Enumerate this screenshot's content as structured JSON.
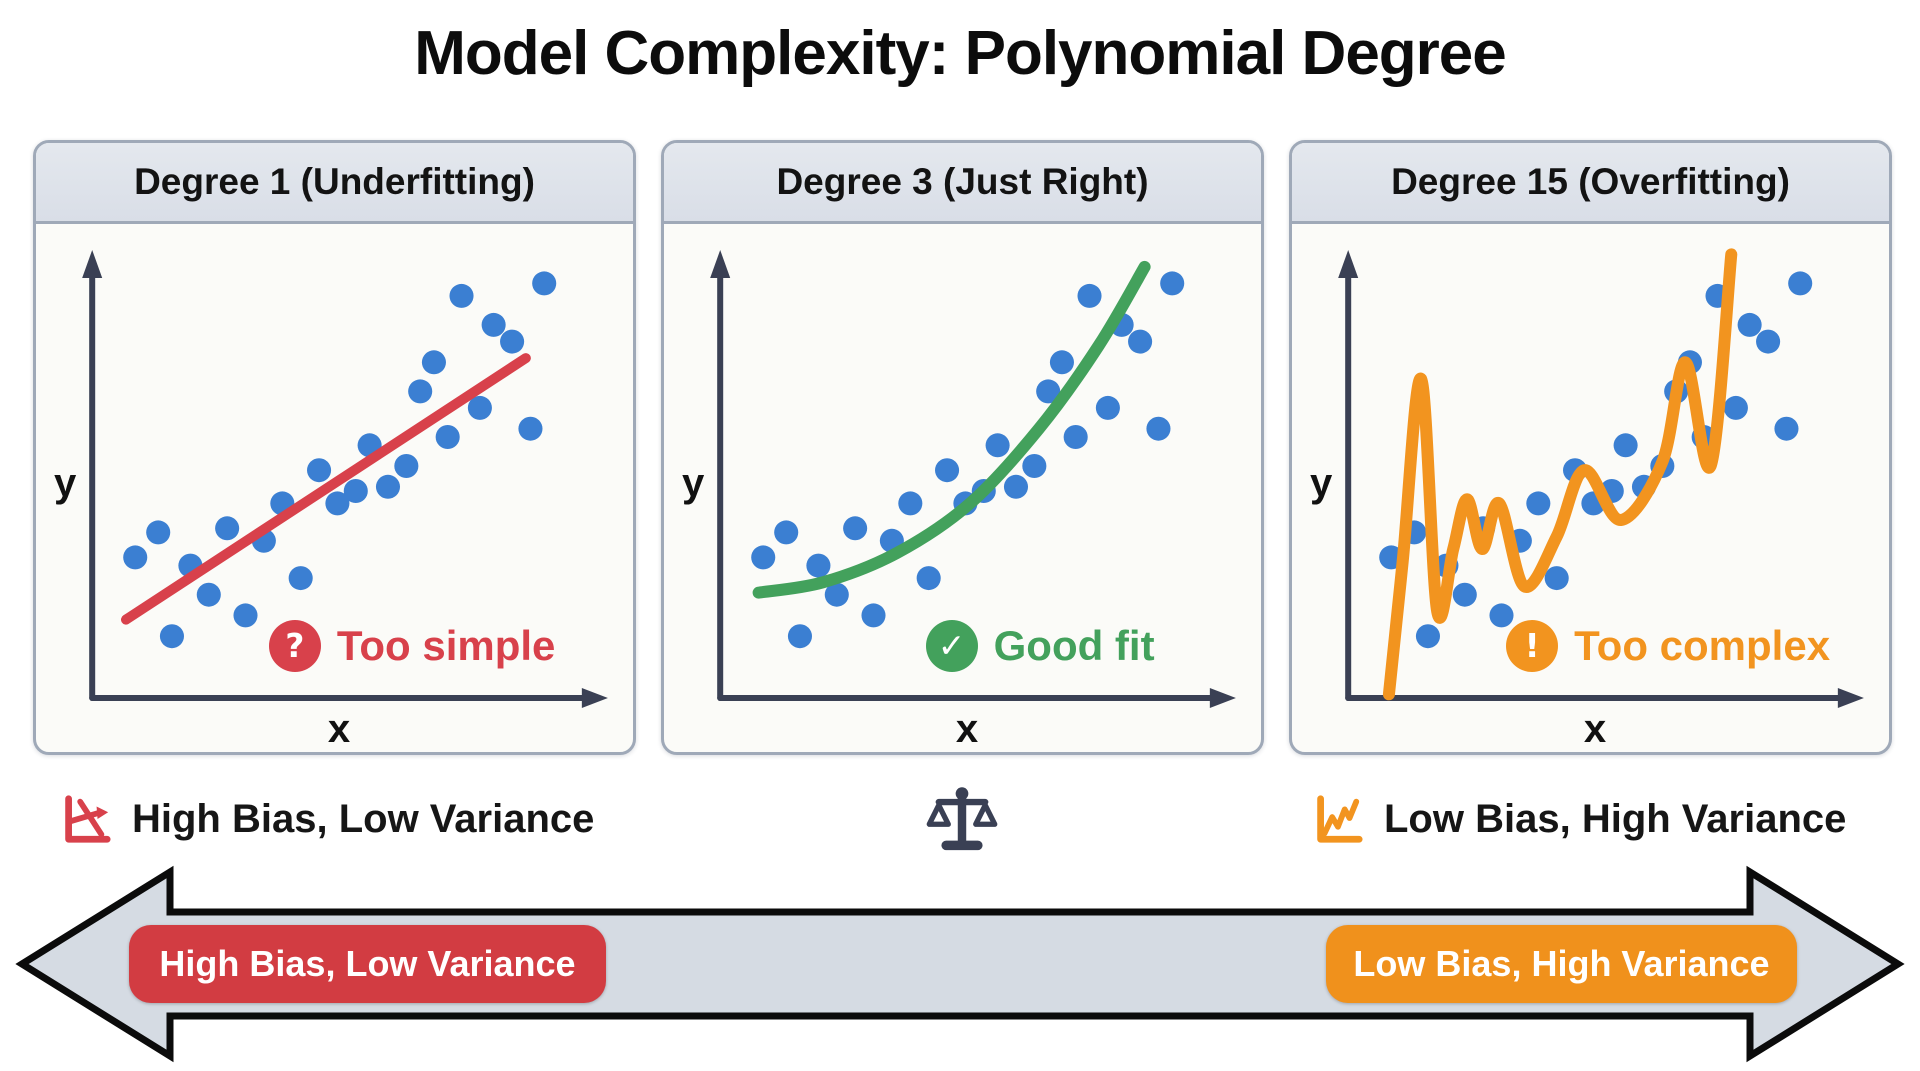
{
  "title": "Model Complexity: Polynomial Degree",
  "colors": {
    "red": "#d8414b",
    "green": "#43a15c",
    "orange": "#f2941f",
    "blue": "#3b7fd2",
    "axis": "#3a4054",
    "panel_border": "#9fa9b8",
    "panel_header_bg": "#d9dee7",
    "panel_body_bg": "#fbfbf8",
    "arrow_fill": "#d5dbe3",
    "arrow_stroke": "#0b0b0b",
    "badge_red": "#d23c42",
    "badge_orange": "#f0911c"
  },
  "panels": [
    {
      "header": "Degree 1 (Underfitting)",
      "status": {
        "icon": "question-circle",
        "glyph": "?",
        "label": "Too simple",
        "color": "#d8414b"
      }
    },
    {
      "header": "Degree 3 (Just Right)",
      "status": {
        "icon": "check-circle",
        "glyph": "✓",
        "label": "Good fit",
        "color": "#43a15c"
      }
    },
    {
      "header": "Degree 15 (Overfitting)",
      "status": {
        "icon": "exclamation-circle",
        "glyph": "!",
        "label": "Too complex",
        "color": "#f2941f"
      }
    }
  ],
  "captions": {
    "left": {
      "icon": "declining-chart-icon",
      "label": "High Bias, Low Variance"
    },
    "center": {
      "icon": "balance-scale-icon"
    },
    "right": {
      "icon": "zigzag-chart-icon",
      "label": "Low Bias, High Variance"
    }
  },
  "spectrum_arrow": {
    "left_badge": {
      "label": "High Bias, Low Variance",
      "color": "#d23c42"
    },
    "right_badge": {
      "label": "Low Bias, High Variance",
      "color": "#f0911c"
    }
  },
  "chart_data": [
    {
      "type": "scatter",
      "panel": "Degree 1 (Underfitting)",
      "xlabel": "x",
      "ylabel": "y",
      "x_range": [
        0,
        1
      ],
      "y_range": [
        0,
        1
      ],
      "grid": false,
      "legend": false,
      "point_color": "#3b7fd2",
      "points": [
        [
          0.05,
          0.31
        ],
        [
          0.1,
          0.37
        ],
        [
          0.13,
          0.12
        ],
        [
          0.17,
          0.29
        ],
        [
          0.21,
          0.22
        ],
        [
          0.25,
          0.38
        ],
        [
          0.29,
          0.17
        ],
        [
          0.33,
          0.35
        ],
        [
          0.37,
          0.44
        ],
        [
          0.41,
          0.26
        ],
        [
          0.45,
          0.52
        ],
        [
          0.49,
          0.44
        ],
        [
          0.53,
          0.47
        ],
        [
          0.56,
          0.58
        ],
        [
          0.6,
          0.48
        ],
        [
          0.64,
          0.53
        ],
        [
          0.67,
          0.71
        ],
        [
          0.7,
          0.78
        ],
        [
          0.73,
          0.6
        ],
        [
          0.76,
          0.94
        ],
        [
          0.8,
          0.67
        ],
        [
          0.83,
          0.87
        ],
        [
          0.87,
          0.83
        ],
        [
          0.91,
          0.62
        ],
        [
          0.94,
          0.97
        ]
      ],
      "fit_line": {
        "label": "degree 1 linear fit",
        "color": "#d8414b",
        "shape": "line",
        "points": [
          [
            0.03,
            0.16
          ],
          [
            0.9,
            0.79
          ]
        ]
      },
      "annotation": "Too simple"
    },
    {
      "type": "scatter",
      "panel": "Degree 3 (Just Right)",
      "xlabel": "x",
      "ylabel": "y",
      "x_range": [
        0,
        1
      ],
      "y_range": [
        0,
        1
      ],
      "grid": false,
      "legend": false,
      "point_color": "#3b7fd2",
      "points": [
        [
          0.05,
          0.31
        ],
        [
          0.1,
          0.37
        ],
        [
          0.13,
          0.12
        ],
        [
          0.17,
          0.29
        ],
        [
          0.21,
          0.22
        ],
        [
          0.25,
          0.38
        ],
        [
          0.29,
          0.17
        ],
        [
          0.33,
          0.35
        ],
        [
          0.37,
          0.44
        ],
        [
          0.41,
          0.26
        ],
        [
          0.45,
          0.52
        ],
        [
          0.49,
          0.44
        ],
        [
          0.53,
          0.47
        ],
        [
          0.56,
          0.58
        ],
        [
          0.6,
          0.48
        ],
        [
          0.64,
          0.53
        ],
        [
          0.67,
          0.71
        ],
        [
          0.7,
          0.78
        ],
        [
          0.73,
          0.6
        ],
        [
          0.76,
          0.94
        ],
        [
          0.8,
          0.67
        ],
        [
          0.83,
          0.87
        ],
        [
          0.87,
          0.83
        ],
        [
          0.91,
          0.62
        ],
        [
          0.94,
          0.97
        ]
      ],
      "fit_line": {
        "label": "degree 3 cubic fit",
        "color": "#43a15c",
        "shape": "smooth",
        "points": [
          [
            0.04,
            0.225
          ],
          [
            0.18,
            0.25
          ],
          [
            0.34,
            0.32
          ],
          [
            0.5,
            0.44
          ],
          [
            0.65,
            0.62
          ],
          [
            0.78,
            0.82
          ],
          [
            0.88,
            1.01
          ]
        ]
      },
      "annotation": "Good fit"
    },
    {
      "type": "scatter",
      "panel": "Degree 15 (Overfitting)",
      "xlabel": "x",
      "ylabel": "y",
      "x_range": [
        0,
        1
      ],
      "y_range": [
        0,
        1
      ],
      "grid": false,
      "legend": false,
      "point_color": "#3b7fd2",
      "points": [
        [
          0.05,
          0.31
        ],
        [
          0.1,
          0.37
        ],
        [
          0.13,
          0.12
        ],
        [
          0.17,
          0.29
        ],
        [
          0.21,
          0.22
        ],
        [
          0.25,
          0.38
        ],
        [
          0.29,
          0.17
        ],
        [
          0.33,
          0.35
        ],
        [
          0.37,
          0.44
        ],
        [
          0.41,
          0.26
        ],
        [
          0.45,
          0.52
        ],
        [
          0.49,
          0.44
        ],
        [
          0.53,
          0.47
        ],
        [
          0.56,
          0.58
        ],
        [
          0.6,
          0.48
        ],
        [
          0.64,
          0.53
        ],
        [
          0.67,
          0.71
        ],
        [
          0.7,
          0.78
        ],
        [
          0.73,
          0.6
        ],
        [
          0.76,
          0.94
        ],
        [
          0.8,
          0.67
        ],
        [
          0.83,
          0.87
        ],
        [
          0.87,
          0.83
        ],
        [
          0.91,
          0.62
        ],
        [
          0.94,
          0.97
        ]
      ],
      "fit_line": {
        "label": "degree 15 oscillating fit",
        "color": "#f2941f",
        "shape": "smooth",
        "points": [
          [
            0.045,
            -0.02
          ],
          [
            0.075,
            0.3
          ],
          [
            0.115,
            0.74
          ],
          [
            0.15,
            0.18
          ],
          [
            0.185,
            0.33
          ],
          [
            0.215,
            0.45
          ],
          [
            0.248,
            0.33
          ],
          [
            0.285,
            0.44
          ],
          [
            0.34,
            0.24
          ],
          [
            0.41,
            0.36
          ],
          [
            0.47,
            0.52
          ],
          [
            0.55,
            0.4
          ],
          [
            0.64,
            0.54
          ],
          [
            0.69,
            0.78
          ],
          [
            0.745,
            0.53
          ],
          [
            0.79,
            1.04
          ]
        ]
      },
      "annotation": "Too complex"
    }
  ]
}
